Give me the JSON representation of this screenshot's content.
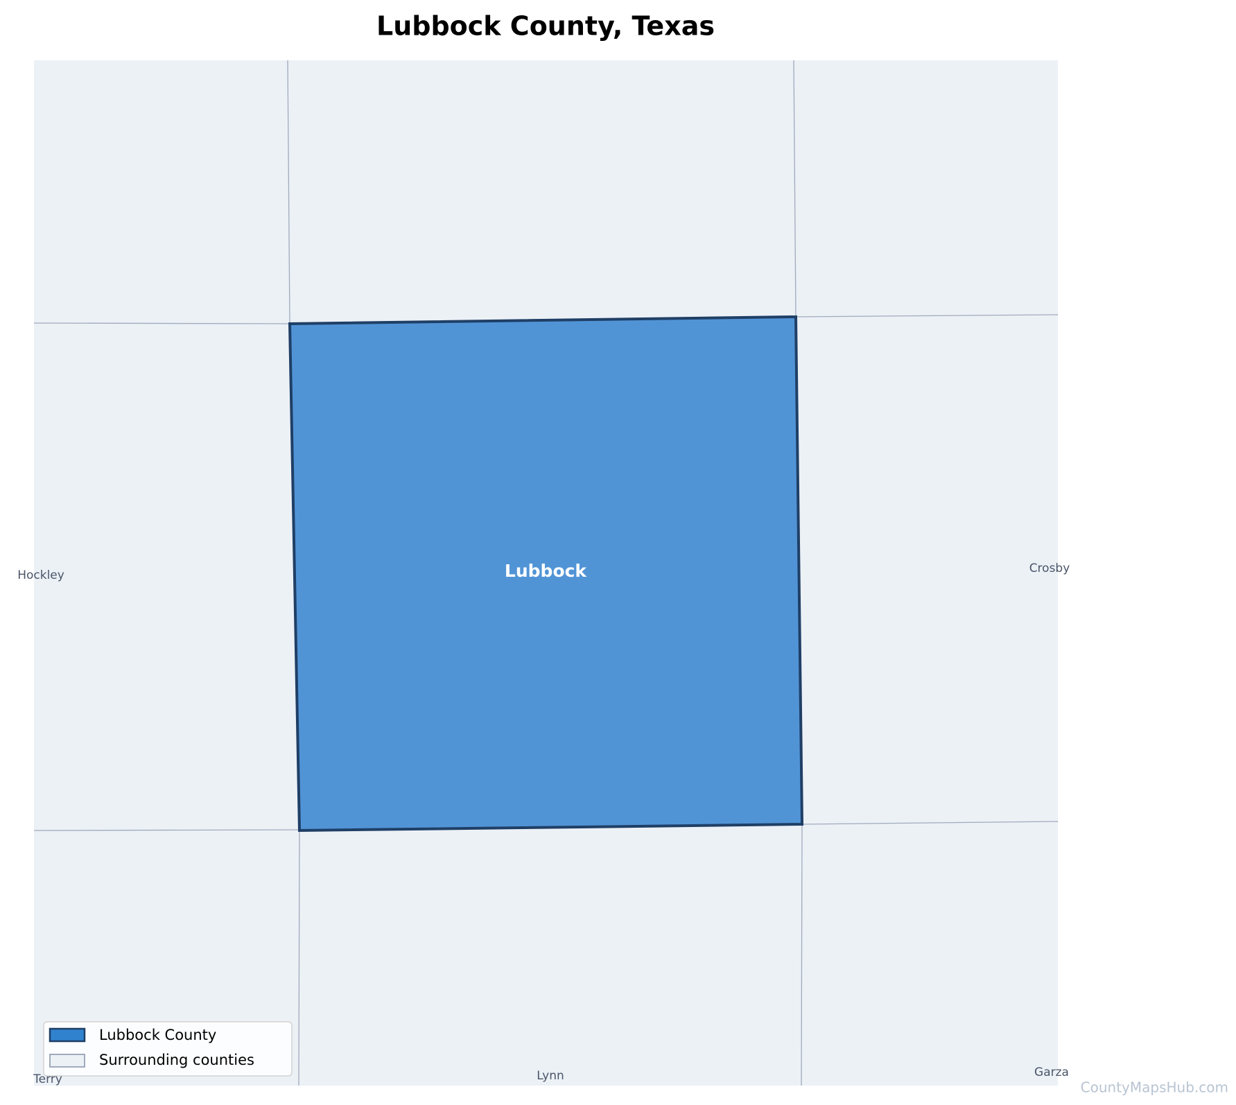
{
  "map": {
    "title": "Lubbock County, Texas",
    "focus": {
      "label": "Lubbock"
    },
    "neighbors": [
      {
        "label": "Hockley"
      },
      {
        "label": "Crosby"
      },
      {
        "label": "Terry"
      },
      {
        "label": "Lynn"
      },
      {
        "label": "Garza"
      }
    ],
    "legend": [
      {
        "label": "Lubbock County"
      },
      {
        "label": "Surrounding counties"
      }
    ],
    "watermark": "CountyMapsHub.com"
  }
}
